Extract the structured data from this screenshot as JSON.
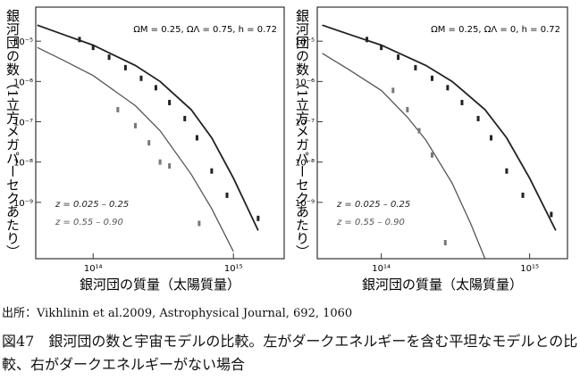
{
  "chart_data": [
    {
      "type": "scatter",
      "y_label": "銀河団の数（1立方メガパーセクあたり）",
      "x_label": "銀河団の質量（太陽質量）",
      "annotation": "ΩM = 0.25, ΩΛ = 0.75, h = 0.72",
      "log_x": true,
      "log_y": true,
      "xlim": [
        39000000000000.0,
        2300000000000000.0
      ],
      "ylim": [
        4e-11,
        7e-05
      ],
      "xticks": [
        {
          "value": 100000000000000.0,
          "label": "10¹⁴"
        },
        {
          "value": 1000000000000000.0,
          "label": "10¹⁵"
        }
      ],
      "yticks": [
        {
          "value": 1e-05,
          "label": "10⁻⁵"
        },
        {
          "value": 1e-06,
          "label": "10⁻⁶"
        },
        {
          "value": 1e-07,
          "label": "10⁻⁷"
        },
        {
          "value": 1e-08,
          "label": "10⁻⁸"
        },
        {
          "value": 1e-09,
          "label": "10⁻⁹"
        }
      ],
      "series": [
        {
          "name": "z = 0.025 – 0.25",
          "color": "#222222",
          "x": [
            40000000000000.0,
            60000000000000.0,
            100000000000000.0,
            200000000000000.0,
            300000000000000.0,
            500000000000000.0,
            700000000000000.0,
            1000000000000000.0,
            1500000000000000.0
          ],
          "values": [
            2.5e-05,
            1.5e-05,
            8e-06,
            2.5e-06,
            1e-06,
            2e-07,
            4e-08,
            4e-09,
            2e-10
          ]
        },
        {
          "name": "z = 0.55 – 0.90",
          "color": "#555555",
          "x": [
            40000000000000.0,
            60000000000000.0,
            100000000000000.0,
            200000000000000.0,
            300000000000000.0,
            500000000000000.0,
            700000000000000.0,
            1000000000000000.0
          ],
          "values": [
            7e-06,
            3.5e-06,
            1.4e-06,
            2.5e-07,
            6e-08,
            5e-09,
            7e-10,
            6e-11
          ]
        }
      ],
      "points": [
        {
          "color": "#222222",
          "x": [
            80000000000000.0,
            100000000000000.0,
            130000000000000.0,
            170000000000000.0,
            220000000000000.0,
            280000000000000.0,
            350000000000000.0,
            450000000000000.0,
            550000000000000.0,
            700000000000000.0,
            900000000000000.0,
            1500000000000000.0
          ],
          "values": [
            1.1e-05,
            7e-06,
            4e-06,
            2.2e-06,
            1.2e-06,
            7e-07,
            3e-07,
            1.2e-07,
            4e-08,
            6e-09,
            1.5e-09,
            4e-10
          ]
        },
        {
          "color": "#777777",
          "x": [
            150000000000000.0,
            200000000000000.0,
            250000000000000.0,
            300000000000000.0,
            350000000000000.0,
            570000000000000.0
          ],
          "values": [
            2e-07,
            8e-08,
            3e-08,
            1e-08,
            8e-09,
            3e-10
          ]
        }
      ]
    },
    {
      "type": "scatter",
      "y_label": "銀河団の数（1立方メガパーセクあたり）",
      "x_label": "銀河団の質量（太陽質量）",
      "annotation": "ΩM = 0.25, ΩΛ = 0, h = 0.72",
      "log_x": true,
      "log_y": true,
      "xlim": [
        37000000000000.0,
        1800000000000000.0
      ],
      "ylim": [
        4e-11,
        7e-05
      ],
      "xticks": [
        {
          "value": 100000000000000.0,
          "label": "10¹⁴"
        },
        {
          "value": 1000000000000000.0,
          "label": "10¹⁵"
        }
      ],
      "yticks": [
        {
          "value": 1e-05,
          "label": "10⁻⁵"
        },
        {
          "value": 1e-06,
          "label": "10⁻⁶"
        },
        {
          "value": 1e-07,
          "label": "10⁻⁷"
        },
        {
          "value": 1e-08,
          "label": "10⁻⁸"
        },
        {
          "value": 1e-09,
          "label": "10⁻⁹"
        }
      ],
      "series": [
        {
          "name": "z = 0.025 – 0.25",
          "color": "#222222",
          "x": [
            40000000000000.0,
            60000000000000.0,
            100000000000000.0,
            200000000000000.0,
            300000000000000.0,
            500000000000000.0,
            700000000000000.0,
            1000000000000000.0,
            1500000000000000.0
          ],
          "values": [
            2.5e-05,
            1.5e-05,
            8e-06,
            2.5e-06,
            1e-06,
            2e-07,
            4e-08,
            4e-09,
            2e-10
          ]
        },
        {
          "name": "z = 0.55 – 0.90",
          "color": "#555555",
          "x": [
            40000000000000.0,
            60000000000000.0,
            100000000000000.0,
            150000000000000.0,
            200000000000000.0,
            300000000000000.0,
            400000000000000.0,
            500000000000000.0
          ],
          "values": [
            5e-06,
            2e-06,
            6e-07,
            1.3e-07,
            3.5e-08,
            3e-09,
            3e-10,
            4e-11
          ]
        }
      ],
      "points": [
        {
          "color": "#222222",
          "x": [
            80000000000000.0,
            100000000000000.0,
            130000000000000.0,
            170000000000000.0,
            220000000000000.0,
            280000000000000.0,
            350000000000000.0,
            450000000000000.0,
            550000000000000.0,
            700000000000000.0,
            900000000000000.0,
            1400000000000000.0
          ],
          "values": [
            1.1e-05,
            7e-06,
            4e-06,
            2.2e-06,
            1.2e-06,
            7e-07,
            3e-07,
            1.2e-07,
            4e-08,
            6e-09,
            1.5e-09,
            5e-10
          ]
        },
        {
          "color": "#777777",
          "x": [
            120000000000000.0,
            150000000000000.0,
            180000000000000.0,
            220000000000000.0,
            270000000000000.0
          ],
          "values": [
            6e-07,
            2e-07,
            6e-08,
            1.5e-08,
            1e-10
          ]
        }
      ]
    }
  ],
  "source": "出所：Vikhlinin et al.2009,  Astrophysical Journal,  692,  1060",
  "caption": "図47　銀河団の数と宇宙モデルの比較。左がダークエネルギーを含む平坦なモデルとの比較、右がダークエネルギーがない場合"
}
